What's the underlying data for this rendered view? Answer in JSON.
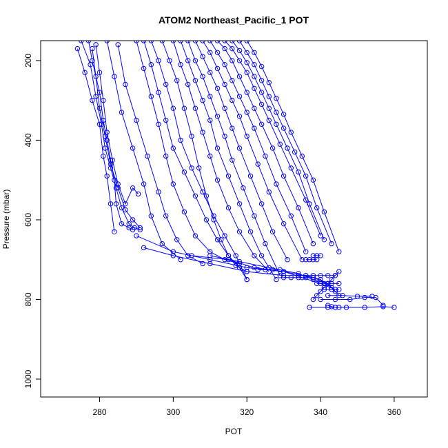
{
  "chart_data": {
    "type": "line",
    "title": "ATOM2 Northeast_Pacific_1 POT",
    "xlabel": "POT",
    "ylabel": "Pressure (mbar)",
    "xlim": [
      264,
      369
    ],
    "ylim": [
      1045,
      150
    ],
    "x_ticks": [
      280,
      300,
      320,
      340,
      360
    ],
    "y_ticks": [
      200,
      400,
      600,
      800,
      1000
    ],
    "color": "#0000ff",
    "point_symbol": "open-circle",
    "series": [
      {
        "x": [
          277,
          278,
          280,
          281,
          282,
          283,
          284,
          284.5,
          286,
          288,
          289
        ],
        "y": [
          150,
          200,
          280,
          350,
          400,
          450,
          500,
          560,
          610,
          620,
          625
        ]
      },
      {
        "x": [
          275,
          277.5,
          279,
          280.5,
          281.5,
          283,
          284.5,
          286,
          288,
          289.5,
          291
        ],
        "y": [
          150,
          210,
          290,
          360,
          420,
          470,
          520,
          570,
          610,
          620,
          625
        ]
      },
      {
        "x": [
          274,
          276,
          278,
          280,
          281,
          282,
          283,
          284
        ],
        "y": [
          170,
          230,
          300,
          360,
          440,
          490,
          560,
          630
        ]
      },
      {
        "x": [
          279,
          280,
          281,
          282,
          283.5,
          285,
          287,
          289,
          290.5
        ],
        "y": [
          160,
          230,
          300,
          380,
          450,
          510,
          560,
          520,
          535
        ]
      },
      {
        "x": [
          278,
          279,
          280,
          281.5,
          283,
          285,
          287,
          289,
          291
        ],
        "y": [
          170,
          240,
          320,
          390,
          460,
          520,
          575,
          600,
          620
        ]
      },
      {
        "x": [
          282,
          284,
          286,
          289,
          292,
          294,
          297,
          302
        ],
        "y": [
          150,
          240,
          330,
          420,
          510,
          590,
          660,
          700
        ]
      },
      {
        "x": [
          285,
          287,
          290,
          293,
          296,
          298,
          301,
          304,
          308
        ],
        "y": [
          160,
          260,
          350,
          440,
          530,
          590,
          650,
          690,
          710
        ]
      },
      {
        "x": [
          290,
          292,
          294,
          296,
          298,
          300,
          303,
          306,
          310,
          314,
          318
        ],
        "y": [
          150,
          220,
          290,
          360,
          440,
          510,
          580,
          640,
          680,
          700,
          710
        ]
      },
      {
        "x": [
          292,
          294,
          296,
          298,
          300,
          303,
          306,
          309,
          312,
          315,
          318,
          320
        ],
        "y": [
          150,
          210,
          280,
          350,
          420,
          480,
          540,
          600,
          650,
          690,
          720,
          750
        ]
      },
      {
        "x": [
          294,
          296,
          298,
          300,
          302,
          305,
          308,
          311,
          314,
          317,
          320
        ],
        "y": [
          150,
          200,
          260,
          320,
          400,
          470,
          530,
          590,
          640,
          690,
          750
        ]
      },
      {
        "x": [
          297,
          299,
          301,
          303,
          305,
          307,
          309,
          311,
          313,
          315,
          317,
          320
        ],
        "y": [
          150,
          200,
          250,
          320,
          390,
          470,
          540,
          600,
          650,
          690,
          715,
          730
        ]
      },
      {
        "x": [
          300,
          302,
          304,
          306,
          308,
          310,
          312,
          315,
          318,
          322,
          326
        ],
        "y": [
          150,
          210,
          260,
          320,
          380,
          440,
          500,
          570,
          630,
          690,
          730
        ]
      },
      {
        "x": [
          302,
          304,
          306,
          308,
          310,
          312,
          315,
          318,
          321,
          324,
          328
        ],
        "y": [
          150,
          200,
          250,
          300,
          350,
          420,
          490,
          560,
          630,
          690,
          750
        ]
      },
      {
        "x": [
          304,
          306,
          308,
          310,
          312,
          314,
          316,
          319,
          322,
          325,
          329
        ],
        "y": [
          150,
          200,
          240,
          290,
          340,
          390,
          450,
          520,
          590,
          660,
          740
        ]
      },
      {
        "x": [
          306,
          308,
          310,
          312,
          314,
          316,
          318,
          321,
          324,
          327,
          331
        ],
        "y": [
          150,
          190,
          230,
          270,
          320,
          370,
          420,
          490,
          560,
          630,
          700
        ]
      },
      {
        "x": [
          308,
          310,
          312,
          314,
          316,
          318,
          320,
          323,
          326,
          330,
          335
        ],
        "y": [
          150,
          180,
          220,
          260,
          300,
          340,
          390,
          460,
          530,
          610,
          700
        ]
      },
      {
        "x": [
          310,
          312,
          314,
          316,
          318,
          320,
          322,
          325,
          328,
          332,
          336
        ],
        "y": [
          150,
          180,
          210,
          250,
          290,
          330,
          370,
          440,
          510,
          590,
          680
        ]
      },
      {
        "x": [
          312,
          314,
          316,
          318,
          320,
          322,
          324,
          327,
          330,
          334,
          338
        ],
        "y": [
          150,
          170,
          200,
          240,
          280,
          320,
          360,
          420,
          490,
          570,
          660
        ]
      },
      {
        "x": [
          314,
          316,
          318,
          320,
          322,
          324,
          326,
          329,
          332,
          336,
          340
        ],
        "y": [
          150,
          170,
          200,
          230,
          270,
          310,
          350,
          410,
          470,
          550,
          640
        ]
      },
      {
        "x": [
          316,
          318,
          320,
          322,
          324,
          326,
          328,
          331,
          334,
          337,
          341
        ],
        "y": [
          150,
          175,
          205,
          240,
          280,
          320,
          360,
          420,
          480,
          560,
          650
        ]
      },
      {
        "x": [
          318,
          320,
          322,
          324,
          326,
          328,
          330,
          333,
          336,
          339,
          343
        ],
        "y": [
          150,
          180,
          210,
          250,
          290,
          330,
          370,
          430,
          490,
          570,
          660
        ]
      },
      {
        "x": [
          320,
          322,
          324,
          326,
          328,
          330,
          332,
          335,
          338,
          341,
          345
        ],
        "y": [
          150,
          180,
          215,
          255,
          295,
          335,
          380,
          440,
          500,
          580,
          680
        ]
      },
      {
        "x": [
          292,
          300,
          310,
          320,
          330,
          336,
          340,
          343
        ],
        "y": [
          670,
          690,
          710,
          730,
          740,
          740,
          750,
          770
        ]
      },
      {
        "x": [
          290,
          300,
          310,
          320,
          330,
          338,
          342,
          344
        ],
        "y": [
          640,
          680,
          700,
          720,
          730,
          745,
          760,
          780
        ]
      },
      {
        "x": [
          305,
          315,
          322,
          330,
          335,
          340,
          344
        ],
        "y": [
          690,
          700,
          720,
          730,
          745,
          760,
          775
        ]
      },
      {
        "x": [
          310,
          318,
          326,
          334,
          338,
          342,
          345
        ],
        "y": [
          690,
          705,
          720,
          735,
          750,
          760,
          790
        ]
      },
      {
        "x": [
          338,
          339,
          340,
          341,
          342,
          343,
          344,
          345
        ],
        "y": [
          800,
          790,
          780,
          770,
          760,
          750,
          740,
          730
        ]
      },
      {
        "x": [
          337,
          342,
          347,
          352,
          357,
          360
        ],
        "y": [
          820,
          820,
          820,
          820,
          818,
          820
        ]
      },
      {
        "x": [
          340,
          344,
          348,
          352,
          355,
          357
        ],
        "y": [
          800,
          800,
          800,
          795,
          795,
          815
        ]
      },
      {
        "x": [
          342,
          346,
          350,
          354
        ],
        "y": [
          790,
          790,
          792,
          792
        ]
      },
      {
        "x": [
          334,
          336,
          338,
          340,
          342,
          344
        ],
        "y": [
          740,
          740,
          740,
          740,
          740,
          740
        ]
      },
      {
        "x": [
          330,
          332,
          334,
          336,
          338
        ],
        "y": [
          745,
          745,
          745,
          745,
          745
        ]
      },
      {
        "x": [
          339,
          341,
          343,
          345
        ],
        "y": [
          760,
          760,
          760,
          760
        ]
      },
      {
        "x": [
          341,
          343,
          345
        ],
        "y": [
          775,
          775,
          775
        ]
      },
      {
        "x": [
          323,
          325,
          327,
          329
        ],
        "y": [
          725,
          725,
          725,
          725
        ]
      },
      {
        "x": [
          336,
          337,
          338,
          339
        ],
        "y": [
          700,
          700,
          700,
          700
        ]
      },
      {
        "x": [
          338,
          339,
          340
        ],
        "y": [
          690,
          690,
          690
        ]
      },
      {
        "x": [
          342,
          343,
          344,
          345
        ],
        "y": [
          815,
          818,
          820,
          820
        ]
      }
    ]
  }
}
